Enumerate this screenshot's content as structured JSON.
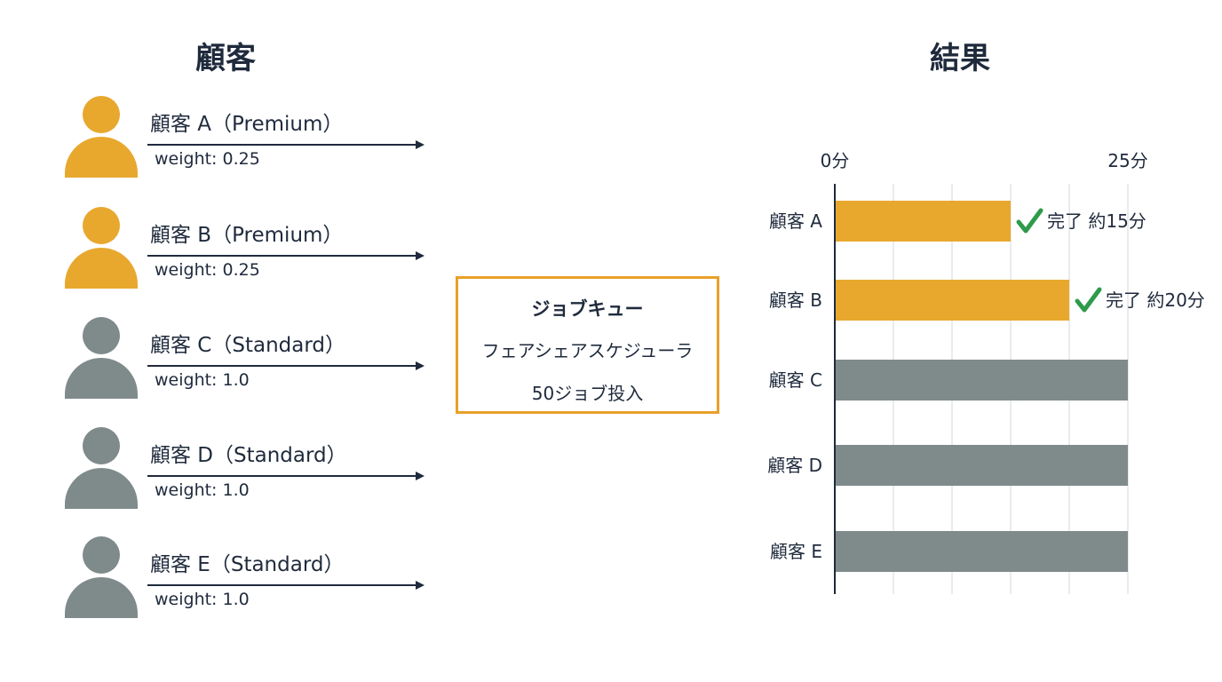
{
  "left_heading": "顧客",
  "right_heading": "結果",
  "customers": [
    {
      "name": "顧客 A（Premium）",
      "weight": "weight: 0.25",
      "tier": "premium"
    },
    {
      "name": "顧客 B（Premium）",
      "weight": "weight: 0.25",
      "tier": "premium"
    },
    {
      "name": "顧客 C（Standard）",
      "weight": "weight: 1.0",
      "tier": "standard"
    },
    {
      "name": "顧客 D（Standard）",
      "weight": "weight: 1.0",
      "tier": "standard"
    },
    {
      "name": "顧客 E（Standard）",
      "weight": "weight: 1.0",
      "tier": "standard"
    }
  ],
  "queue": {
    "title": "ジョブキュー",
    "line1": "フェアシェアスケジューラ",
    "line2": "50ジョブ投入"
  },
  "colors": {
    "premium": "#e8a82e",
    "standard": "#7f8a8b",
    "text": "#1f2a3c",
    "check": "#2e9a4a",
    "grid": "#d4d7db"
  },
  "chart_data": {
    "type": "bar",
    "orientation": "horizontal",
    "categories": [
      "顧客 A",
      "顧客 B",
      "顧客 C",
      "顧客 D",
      "顧客 E"
    ],
    "values": [
      15,
      20,
      25,
      25,
      25
    ],
    "xlim": [
      0,
      25
    ],
    "tick_labels": [
      "0分",
      "25分"
    ],
    "annotations": [
      "完了 約15分",
      "完了 約20分",
      "",
      "",
      ""
    ],
    "grid": true
  }
}
